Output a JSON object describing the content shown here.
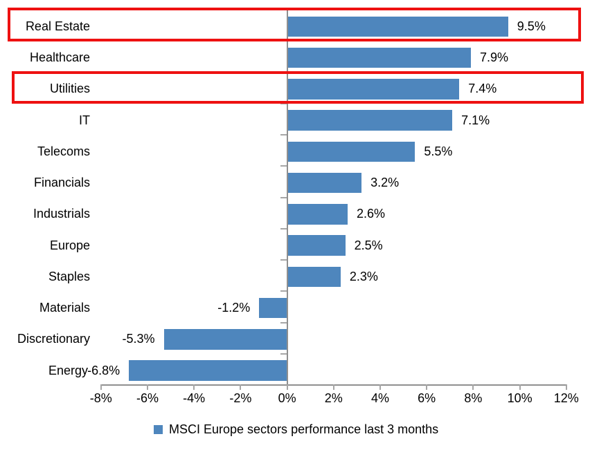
{
  "chart_data": {
    "type": "bar",
    "orientation": "horizontal",
    "title": "",
    "categories": [
      "Real Estate",
      "Healthcare",
      "Utilities",
      "IT",
      "Telecoms",
      "Financials",
      "Industrials",
      "Europe",
      "Staples",
      "Materials",
      "Discretionary",
      "Energy"
    ],
    "values": [
      9.5,
      7.9,
      7.4,
      7.1,
      5.5,
      3.2,
      2.6,
      2.5,
      2.3,
      -1.2,
      -5.3,
      -6.8
    ],
    "value_labels": [
      "9.5%",
      "7.9%",
      "7.4%",
      "7.1%",
      "5.5%",
      "3.2%",
      "2.6%",
      "2.5%",
      "2.3%",
      "-1.2%",
      "-5.3%",
      "-6.8%"
    ],
    "value_suffix": "%",
    "x_ticks": [
      {
        "label": "-8%",
        "value": -8
      },
      {
        "label": "-6%",
        "value": -6
      },
      {
        "label": "-4%",
        "value": -4
      },
      {
        "label": "-2%",
        "value": -2
      },
      {
        "label": "0%",
        "value": 0
      },
      {
        "label": "2%",
        "value": 2
      },
      {
        "label": "4%",
        "value": 4
      },
      {
        "label": "6%",
        "value": 6
      },
      {
        "label": "8%",
        "value": 8
      },
      {
        "label": "10%",
        "value": 10
      },
      {
        "label": "12%",
        "value": 12
      }
    ],
    "xlim": [
      -8,
      12
    ],
    "grid": false,
    "legend": "MSCI Europe sectors performance last 3 months",
    "legend_position": "bottom-center",
    "bar_color": "#4E86BD",
    "axis_color": "#8F8F8F",
    "tick_color": "#A6A6A6",
    "highlight_color": "#EE1111",
    "highlight_boxes": [
      {
        "category": "Real Estate",
        "index": 0
      },
      {
        "category": "Utilities",
        "index": 2
      }
    ]
  }
}
